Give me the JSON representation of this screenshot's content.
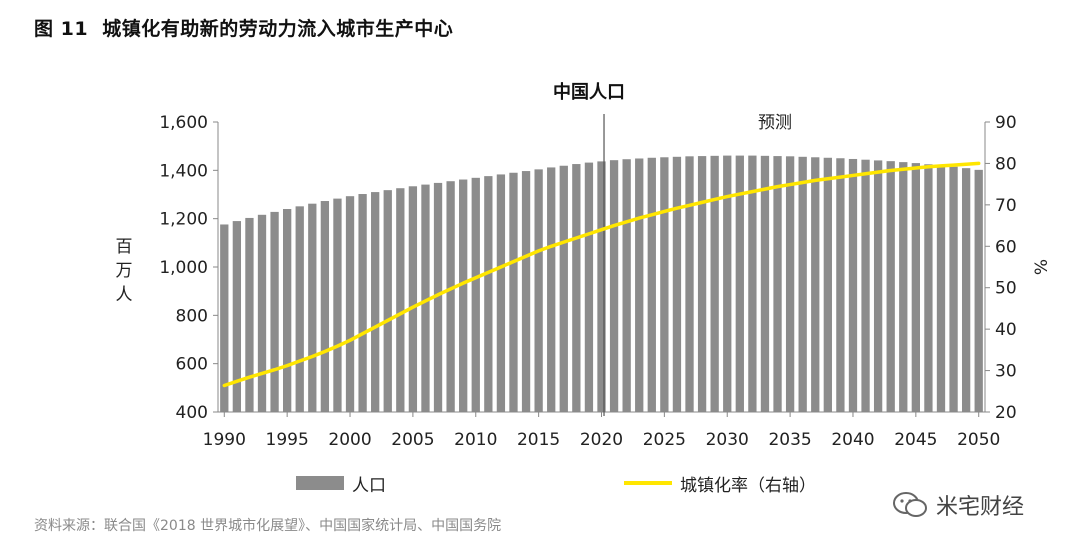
{
  "figure": {
    "label": "图 11",
    "title": "城镇化有助新的劳动力流入城市生产中心"
  },
  "source": "资料来源：联合国《2018 世界城市化展望》、中国国家统计局、中国国务院",
  "watermark": "米宅财经",
  "legend": {
    "bars": "人口",
    "line": "城镇化率（右轴）"
  },
  "colors": {
    "bar": "#8c8c8c",
    "line": "#ffe600",
    "divider": "#555555"
  },
  "chart_data": {
    "type": "bar",
    "title": "中国人口",
    "forecast_label": "预测",
    "forecast_start": 2020,
    "ylabel_left": "百万人",
    "ylabel_right": "%",
    "ylim_left": [
      400,
      1600
    ],
    "ylim_right": [
      20,
      90
    ],
    "yticks_left": [
      "400",
      "600",
      "800",
      "1,000",
      "1,200",
      "1,400",
      "1,600"
    ],
    "yticks_right": [
      "20",
      "30",
      "40",
      "50",
      "60",
      "70",
      "80",
      "90"
    ],
    "xticks": [
      "1990",
      "1995",
      "2000",
      "2005",
      "2010",
      "2015",
      "2020",
      "2025",
      "2030",
      "2035",
      "2040",
      "2045",
      "2050"
    ],
    "x": [
      1990,
      1991,
      1992,
      1993,
      1994,
      1995,
      1996,
      1997,
      1998,
      1999,
      2000,
      2001,
      2002,
      2003,
      2004,
      2005,
      2006,
      2007,
      2008,
      2009,
      2010,
      2011,
      2012,
      2013,
      2014,
      2015,
      2016,
      2017,
      2018,
      2019,
      2020,
      2021,
      2022,
      2023,
      2024,
      2025,
      2026,
      2027,
      2028,
      2029,
      2030,
      2031,
      2032,
      2033,
      2034,
      2035,
      2036,
      2037,
      2038,
      2039,
      2040,
      2041,
      2042,
      2043,
      2044,
      2045,
      2046,
      2047,
      2048,
      2049,
      2050
    ],
    "series": [
      {
        "name": "人口",
        "axis": "left",
        "type": "bar",
        "values": [
          1176,
          1190,
          1203,
          1216,
          1228,
          1240,
          1251,
          1262,
          1273,
          1283,
          1293,
          1302,
          1310,
          1318,
          1326,
          1334,
          1341,
          1348,
          1355,
          1362,
          1369,
          1376,
          1383,
          1390,
          1397,
          1404,
          1412,
          1419,
          1426,
          1432,
          1437,
          1442,
          1446,
          1449,
          1452,
          1454,
          1456,
          1458,
          1459,
          1460,
          1461,
          1461,
          1461,
          1460,
          1459,
          1458,
          1456,
          1454,
          1452,
          1450,
          1447,
          1444,
          1441,
          1438,
          1434,
          1430,
          1425,
          1420,
          1415,
          1409,
          1402
        ]
      },
      {
        "name": "城镇化率（右轴）",
        "axis": "right",
        "type": "line",
        "values": [
          26.4,
          27.4,
          28.4,
          29.3,
          30.2,
          31.2,
          32.3,
          33.4,
          34.6,
          35.9,
          37.3,
          38.9,
          40.5,
          42.1,
          43.7,
          45.3,
          46.8,
          48.3,
          49.7,
          51.1,
          52.4,
          53.7,
          55.0,
          56.3,
          57.6,
          58.9,
          60.0,
          61.0,
          62.0,
          63.0,
          64.0,
          65.0,
          65.9,
          66.8,
          67.6,
          68.4,
          69.2,
          69.9,
          70.6,
          71.3,
          72.0,
          72.6,
          73.2,
          73.8,
          74.4,
          74.9,
          75.4,
          75.9,
          76.3,
          76.7,
          77.1,
          77.5,
          77.9,
          78.3,
          78.6,
          78.9,
          79.2,
          79.4,
          79.6,
          79.8,
          80.0
        ]
      }
    ]
  }
}
